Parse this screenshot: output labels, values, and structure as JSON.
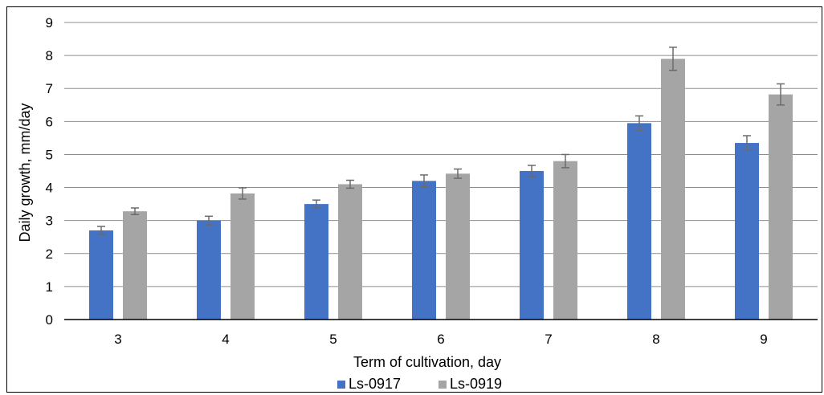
{
  "chart_data": {
    "type": "bar",
    "xlabel": "Term of cultivation, day",
    "ylabel": "Daily growth, mm/day",
    "categories": [
      "3",
      "4",
      "5",
      "6",
      "7",
      "8",
      "9"
    ],
    "ylim": [
      0,
      9
    ],
    "yticks": [
      "0",
      "1",
      "2",
      "3",
      "4",
      "5",
      "6",
      "7",
      "8",
      "9"
    ],
    "grid": true,
    "legend_position": "bottom",
    "series": [
      {
        "name": "Ls-0917",
        "color": "#4472C4",
        "values": [
          2.7,
          3.0,
          3.5,
          4.2,
          4.5,
          5.95,
          5.35
        ],
        "errors": [
          0.12,
          0.13,
          0.12,
          0.18,
          0.17,
          0.22,
          0.22
        ]
      },
      {
        "name": "Ls-0919",
        "color": "#A5A5A5",
        "values": [
          3.28,
          3.82,
          4.1,
          4.42,
          4.8,
          7.9,
          6.82
        ],
        "errors": [
          0.1,
          0.17,
          0.12,
          0.14,
          0.2,
          0.35,
          0.32
        ]
      }
    ]
  }
}
